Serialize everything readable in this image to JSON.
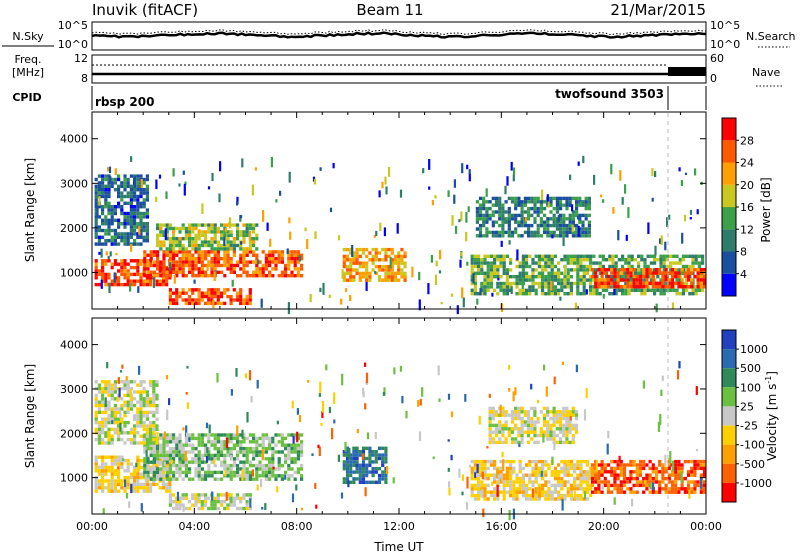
{
  "header": {
    "station": "Inuvik (fitACF)",
    "beam": "Beam 11",
    "date": "21/Mar/2015"
  },
  "summary_panels": {
    "noise": {
      "left_label": "N.Sky",
      "right_label": "N.Search",
      "left_ticks": [
        "10^5",
        "10^0"
      ],
      "right_ticks": [
        "10^5",
        "10^0"
      ]
    },
    "freq": {
      "left_label_line1": "Freq.",
      "left_label_line2": "[MHz]",
      "right_label": "Nave",
      "left_ticks": [
        "12",
        "8"
      ],
      "right_ticks": [
        "60",
        "0"
      ]
    },
    "cpid": {
      "label": "CPID",
      "segments": [
        {
          "name": "rbsp 200",
          "start_hour": 0,
          "end_hour": 22.8
        },
        {
          "name": "twofsound 3503",
          "start_hour": 22.8,
          "end_hour": 24
        }
      ]
    }
  },
  "colors": {
    "power_scale": [
      "#0000ff",
      "#1a4fa0",
      "#2e7d6b",
      "#3aa04a",
      "#c8c820",
      "#ffa000",
      "#ff5a00",
      "#ff0000"
    ],
    "velocity_scale": [
      "#2040c0",
      "#2a6ab0",
      "#2e8a5a",
      "#6cc040",
      "#c8c8c8",
      "#ffd000",
      "#ffa000",
      "#ff6000",
      "#ff0000"
    ]
  },
  "chart_data": [
    {
      "type": "heatmap",
      "panel": "power",
      "xlabel": "",
      "ylabel": "Slant Range [km]",
      "xlim": [
        0,
        24
      ],
      "ylim": [
        180,
        4600
      ],
      "y_ticks": [
        "1000",
        "2000",
        "3000",
        "4000"
      ],
      "x_ticks": [],
      "colorbar": {
        "label": "Power [dB]",
        "range": [
          0,
          32
        ],
        "ticks": [
          "4",
          "8",
          "12",
          "16",
          "20",
          "24",
          "28"
        ]
      },
      "regions": [
        {
          "t0": 0.1,
          "t1": 3.0,
          "r0": 700,
          "r1": 1300,
          "level": 28
        },
        {
          "t0": 2.0,
          "t1": 8.2,
          "r0": 900,
          "r1": 1500,
          "level": 26
        },
        {
          "t0": 2.5,
          "t1": 6.5,
          "r0": 1500,
          "r1": 2100,
          "level": 16
        },
        {
          "t0": 3.0,
          "t1": 6.2,
          "r0": 300,
          "r1": 650,
          "level": 27
        },
        {
          "t0": 9.8,
          "t1": 12.2,
          "r0": 850,
          "r1": 1550,
          "level": 22
        },
        {
          "t0": 14.8,
          "t1": 23.9,
          "r0": 500,
          "r1": 1400,
          "level": 14
        },
        {
          "t0": 19.5,
          "t1": 23.9,
          "r0": 700,
          "r1": 1100,
          "level": 27
        },
        {
          "t0": 0.1,
          "t1": 2.2,
          "r0": 1600,
          "r1": 3200,
          "level": 8
        },
        {
          "t0": 15.0,
          "t1": 19.5,
          "r0": 1800,
          "r1": 2700,
          "level": 10
        }
      ]
    },
    {
      "type": "heatmap",
      "panel": "velocity",
      "xlabel": "Time UT",
      "ylabel": "Slant Range [km]",
      "xlim": [
        0,
        24
      ],
      "ylim": [
        180,
        4600
      ],
      "y_ticks": [
        "1000",
        "2000",
        "3000",
        "4000"
      ],
      "x_ticks": [
        "00:00",
        "04:00",
        "08:00",
        "12:00",
        "16:00",
        "20:00",
        "00:00"
      ],
      "colorbar": {
        "label": "Velocity [m s^-1]",
        "range": [
          -1000,
          1000
        ],
        "ticks": [
          "1000",
          "500",
          "100",
          "25",
          "-25",
          "-100",
          "-500",
          "-1000"
        ]
      },
      "regions": [
        {
          "t0": 0.1,
          "t1": 3.0,
          "r0": 700,
          "r1": 1500,
          "level": -150
        },
        {
          "t0": 2.0,
          "t1": 8.2,
          "r0": 1000,
          "r1": 2000,
          "level": 200
        },
        {
          "t0": 3.0,
          "t1": 6.2,
          "r0": 300,
          "r1": 650,
          "level": 10
        },
        {
          "t0": 9.8,
          "t1": 11.5,
          "r0": 900,
          "r1": 1700,
          "level": 600
        },
        {
          "t0": 14.8,
          "t1": 19.5,
          "r0": 500,
          "r1": 1400,
          "level": -200
        },
        {
          "t0": 19.5,
          "t1": 23.9,
          "r0": 700,
          "r1": 1400,
          "level": -700
        },
        {
          "t0": 0.1,
          "t1": 2.5,
          "r0": 1800,
          "r1": 3200,
          "level": 0
        },
        {
          "t0": 15.5,
          "t1": 19.0,
          "r0": 1800,
          "r1": 2600,
          "level": -50
        }
      ]
    }
  ]
}
